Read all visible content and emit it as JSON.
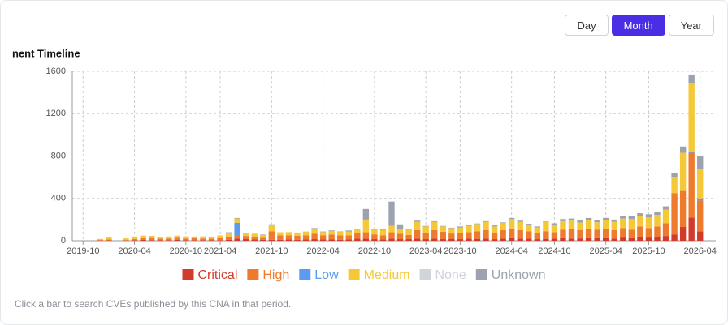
{
  "buttons": [
    {
      "label": "Day"
    },
    {
      "label": "Month",
      "active": true
    },
    {
      "label": "Year"
    }
  ],
  "chart_data": {
    "type": "stacked_bar",
    "title": "nent Timeline",
    "categories": [
      "2019-10",
      null,
      null,
      null,
      null,
      null,
      "2020-04",
      null,
      null,
      null,
      null,
      null,
      "2020-10",
      null,
      null,
      null,
      "2021-04",
      null,
      null,
      null,
      null,
      null,
      "2021-10",
      null,
      null,
      null,
      null,
      null,
      "2022-04",
      null,
      null,
      null,
      null,
      null,
      "2022-10",
      null,
      null,
      null,
      null,
      null,
      "2023-04",
      null,
      null,
      null,
      "2023-10",
      null,
      null,
      null,
      null,
      null,
      "2024-04",
      null,
      null,
      null,
      null,
      "2024-10",
      null,
      null,
      null,
      null,
      null,
      "2025-04",
      null,
      null,
      null,
      null,
      "2025-10",
      null,
      null,
      null,
      null,
      null,
      "2026-04"
    ],
    "series": [
      {
        "name": "Critical",
        "color": "#d23b2c",
        "values": [
          0,
          0,
          2,
          3,
          0,
          2,
          5,
          8,
          6,
          4,
          5,
          8,
          6,
          5,
          6,
          4,
          5,
          10,
          20,
          15,
          12,
          8,
          10,
          10,
          12,
          8,
          12,
          15,
          12,
          14,
          10,
          12,
          20,
          20,
          15,
          12,
          20,
          15,
          15,
          20,
          15,
          20,
          15,
          18,
          15,
          20,
          18,
          20,
          15,
          20,
          25,
          20,
          20,
          15,
          18,
          20,
          25,
          20,
          22,
          25,
          25,
          25,
          20,
          30,
          25,
          35,
          30,
          35,
          45,
          60,
          130,
          220,
          90
        ]
      },
      {
        "name": "High",
        "color": "#ee7a2d",
        "values": [
          0,
          0,
          5,
          10,
          0,
          5,
          10,
          15,
          20,
          15,
          15,
          20,
          15,
          20,
          15,
          15,
          20,
          30,
          30,
          30,
          25,
          20,
          80,
          40,
          40,
          40,
          40,
          50,
          40,
          45,
          40,
          40,
          50,
          60,
          45,
          40,
          60,
          50,
          40,
          80,
          60,
          80,
          70,
          50,
          60,
          60,
          70,
          80,
          60,
          80,
          90,
          80,
          70,
          60,
          70,
          60,
          80,
          90,
          80,
          90,
          80,
          90,
          80,
          90,
          80,
          100,
          90,
          100,
          120,
          390,
          340,
          610,
          290
        ]
      },
      {
        "name": "Low",
        "color": "#5b9cf0",
        "values": [
          0,
          0,
          0,
          0,
          0,
          0,
          0,
          0,
          0,
          0,
          0,
          0,
          0,
          0,
          0,
          0,
          0,
          0,
          120,
          0,
          0,
          0,
          0,
          0,
          0,
          0,
          0,
          0,
          0,
          0,
          0,
          0,
          0,
          0,
          0,
          0,
          0,
          0,
          0,
          0,
          0,
          0,
          0,
          0,
          0,
          0,
          0,
          0,
          0,
          0,
          0,
          0,
          0,
          0,
          0,
          0,
          0,
          0,
          0,
          0,
          0,
          0,
          0,
          0,
          0,
          0,
          0,
          0,
          0,
          0,
          0,
          10,
          20
        ]
      },
      {
        "name": "Medium",
        "color": "#f5c838",
        "values": [
          0,
          0,
          10,
          20,
          0,
          15,
          25,
          25,
          20,
          15,
          20,
          20,
          20,
          15,
          20,
          20,
          25,
          35,
          40,
          25,
          30,
          25,
          60,
          30,
          30,
          30,
          35,
          50,
          30,
          35,
          40,
          35,
          40,
          120,
          45,
          50,
          60,
          40,
          50,
          80,
          60,
          80,
          50,
          50,
          50,
          60,
          70,
          80,
          60,
          70,
          90,
          80,
          60,
          50,
          90,
          70,
          80,
          80,
          70,
          80,
          70,
          80,
          80,
          90,
          100,
          100,
          100,
          110,
          130,
          150,
          360,
          650,
          280
        ]
      },
      {
        "name": "None",
        "color": "#d1d5db",
        "hidden": true,
        "values": [
          0,
          0,
          0,
          0,
          0,
          0,
          0,
          0,
          0,
          0,
          0,
          0,
          0,
          0,
          0,
          0,
          0,
          0,
          0,
          0,
          0,
          0,
          0,
          0,
          0,
          0,
          0,
          0,
          0,
          0,
          0,
          0,
          0,
          0,
          0,
          0,
          0,
          0,
          0,
          0,
          0,
          0,
          0,
          0,
          0,
          0,
          0,
          0,
          0,
          0,
          0,
          0,
          0,
          0,
          0,
          0,
          0,
          0,
          0,
          0,
          0,
          0,
          0,
          0,
          0,
          0,
          0,
          0,
          0,
          0,
          0,
          0,
          0
        ]
      },
      {
        "name": "Unknown",
        "color": "#9ca3af",
        "values": [
          0,
          0,
          0,
          0,
          0,
          0,
          0,
          0,
          0,
          0,
          0,
          0,
          0,
          0,
          0,
          0,
          0,
          5,
          5,
          0,
          0,
          5,
          5,
          0,
          0,
          0,
          0,
          5,
          5,
          5,
          0,
          10,
          5,
          100,
          10,
          10,
          230,
          50,
          10,
          10,
          5,
          5,
          5,
          5,
          10,
          10,
          5,
          5,
          10,
          5,
          10,
          10,
          10,
          10,
          5,
          15,
          20,
          20,
          20,
          20,
          20,
          20,
          20,
          20,
          25,
          25,
          30,
          30,
          30,
          40,
          60,
          80,
          120
        ]
      }
    ],
    "ylim": [
      0,
      1600
    ],
    "yticks": [
      0,
      400,
      800,
      1200,
      1600
    ],
    "grid": true
  },
  "footnote": "Click a bar to search CVEs published by this CNA in that period."
}
